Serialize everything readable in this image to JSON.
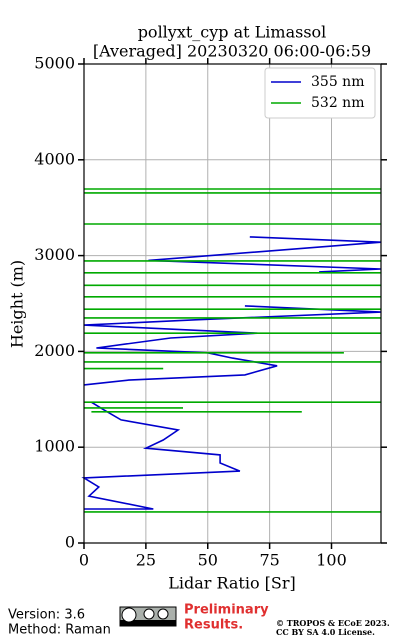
{
  "chart_data": {
    "type": "line",
    "title": "pollyxt_cyp at Limassol",
    "subtitle": "[Averaged] 20230320 06:00-06:59",
    "x_label": "Lidar Ratio [Sr]",
    "y_label": "Height (m)",
    "xlim": [
      0,
      120
    ],
    "xticks": [
      0,
      25,
      50,
      75,
      100
    ],
    "ylim": [
      0,
      5000
    ],
    "yticks": [
      0,
      1000,
      2000,
      3000,
      4000,
      5000
    ],
    "grid": true,
    "legend": "upper right",
    "series": [
      {
        "name": "355 nm",
        "color": "#0000cc",
        "y": [
          355,
          355,
          490,
          585,
          680,
          750,
          835,
          920,
          990,
          1075,
          1180,
          1285,
          1390,
          1470,
          null,
          1650,
          1700,
          1755,
          1850,
          1930,
          1985,
          2035,
          2140,
          2190,
          2275,
          2330,
          2410,
          2475,
          null,
          2830,
          2860,
          2950,
          3140,
          3195
        ],
        "values": [
          0,
          28,
          2,
          6,
          0,
          63,
          55,
          55,
          25,
          32,
          38,
          15,
          8,
          3,
          null,
          0,
          18,
          65,
          78,
          60,
          50,
          5,
          35,
          70,
          0,
          45,
          120,
          65,
          null,
          95,
          120,
          26,
          120,
          67
        ]
      },
      {
        "name": "532 nm",
        "color": "#00aa00",
        "y": [
          325,
          325,
          null,
          1370,
          1370,
          null,
          1410,
          1410,
          null,
          1470,
          1470,
          null,
          1820,
          1820,
          null,
          1890,
          1890,
          null,
          1985,
          1985,
          null,
          2190,
          2190,
          null,
          2350,
          2350,
          null,
          2440,
          2440,
          null,
          2570,
          2570,
          null,
          2690,
          2690,
          null,
          2820,
          2820,
          null,
          2945,
          2945,
          null,
          3330,
          3330,
          null,
          3655,
          3655,
          null,
          3695,
          3695
        ],
        "values": [
          0,
          120,
          null,
          3,
          88,
          null,
          0,
          40,
          null,
          0,
          120,
          null,
          0,
          32,
          null,
          0,
          120,
          null,
          0,
          105,
          null,
          0,
          120,
          null,
          0,
          120,
          null,
          0,
          120,
          null,
          0,
          120,
          null,
          0,
          120,
          null,
          0,
          120,
          null,
          0,
          120,
          null,
          0,
          120,
          null,
          0,
          120,
          null,
          0,
          120
        ]
      }
    ]
  },
  "footer": {
    "version": "Version: 3.6",
    "method": "Method: Raman",
    "notice": [
      "Preliminary",
      "Results."
    ],
    "copyright": "© TROPOS & ECoE 2023.",
    "license": "CC BY SA 4.0 License."
  }
}
